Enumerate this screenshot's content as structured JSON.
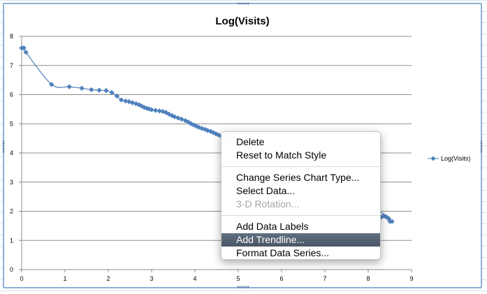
{
  "window": {
    "background_color": "#ffffff",
    "frame_color": "#8db0d6"
  },
  "chart_data": {
    "type": "line",
    "title": "Log(Visits)",
    "xlabel": "",
    "ylabel": "",
    "xlim": [
      0,
      9
    ],
    "ylim": [
      0,
      8
    ],
    "x_ticks": [
      "0",
      "1",
      "2",
      "3",
      "4",
      "5",
      "6",
      "7",
      "8",
      "9"
    ],
    "y_ticks": [
      "0",
      "1",
      "2",
      "3",
      "4",
      "5",
      "6",
      "7",
      "8"
    ],
    "grid": "horizontal",
    "legend": "right",
    "smoothed": true,
    "marker": "diamond",
    "series": [
      {
        "name": "Log(Visits)",
        "color": "#4f81bd",
        "points": [
          [
            0,
            7.6
          ],
          [
            0.05,
            7.6
          ],
          [
            0.1,
            7.45
          ],
          [
            0.69,
            6.35
          ],
          [
            1.1,
            6.27
          ],
          [
            1.39,
            6.22
          ],
          [
            1.61,
            6.17
          ],
          [
            1.79,
            6.15
          ],
          [
            1.95,
            6.14
          ],
          [
            2.08,
            6.07
          ],
          [
            2.2,
            5.95
          ],
          [
            2.3,
            5.82
          ],
          [
            2.4,
            5.78
          ],
          [
            2.48,
            5.76
          ],
          [
            2.56,
            5.72
          ],
          [
            2.64,
            5.69
          ],
          [
            2.71,
            5.65
          ],
          [
            2.77,
            5.61
          ],
          [
            2.83,
            5.56
          ],
          [
            2.89,
            5.53
          ],
          [
            2.94,
            5.51
          ],
          [
            3.0,
            5.48
          ],
          [
            3.09,
            5.46
          ],
          [
            3.18,
            5.44
          ],
          [
            3.26,
            5.42
          ],
          [
            3.33,
            5.39
          ],
          [
            3.4,
            5.33
          ],
          [
            3.47,
            5.28
          ],
          [
            3.53,
            5.24
          ],
          [
            3.61,
            5.2
          ],
          [
            3.69,
            5.16
          ],
          [
            3.78,
            5.11
          ],
          [
            3.85,
            5.06
          ],
          [
            3.91,
            5.0
          ],
          [
            3.97,
            4.96
          ],
          [
            4.03,
            4.92
          ],
          [
            4.09,
            4.88
          ],
          [
            4.16,
            4.84
          ],
          [
            4.23,
            4.81
          ],
          [
            4.29,
            4.77
          ],
          [
            4.36,
            4.74
          ],
          [
            4.42,
            4.7
          ],
          [
            4.48,
            4.66
          ],
          [
            4.54,
            4.62
          ],
          [
            4.6,
            4.58
          ],
          [
            4.65,
            4.55
          ],
          [
            4.7,
            4.52
          ],
          [
            8.24,
            2.0
          ],
          [
            8.3,
            1.8
          ],
          [
            8.36,
            1.84
          ],
          [
            8.42,
            1.8
          ],
          [
            8.47,
            1.75
          ],
          [
            8.5,
            1.65
          ],
          [
            8.55,
            1.65
          ]
        ]
      }
    ]
  },
  "context_menu": {
    "groups": [
      [
        {
          "label": "Delete",
          "state": "normal"
        },
        {
          "label": "Reset to Match Style",
          "state": "normal"
        }
      ],
      [
        {
          "label": "Change Series Chart Type...",
          "state": "normal"
        },
        {
          "label": "Select Data...",
          "state": "normal"
        },
        {
          "label": "3-D Rotation...",
          "state": "disabled"
        }
      ],
      [
        {
          "label": "Add Data Labels",
          "state": "normal"
        },
        {
          "label": "Add Trendline...",
          "state": "highlighted"
        },
        {
          "label": "Format Data Series...",
          "state": "normal"
        }
      ]
    ]
  }
}
